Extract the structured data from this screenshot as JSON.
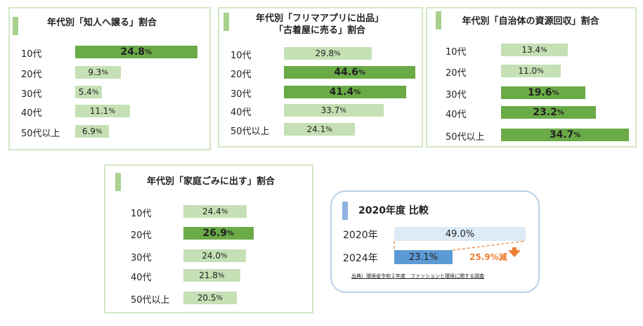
{
  "chart_data": [
    {
      "type": "bar",
      "title": "年代別「知人へ譲る」割合",
      "categories": [
        "10代",
        "20代",
        "30代",
        "40代",
        "50代以上"
      ],
      "values": [
        24.8,
        9.3,
        5.4,
        11.1,
        6.9
      ],
      "unit": "%",
      "highlight": 0
    },
    {
      "type": "bar",
      "title": "年代別「フリマアプリに出品」「古着屋に売る」割合",
      "title_lines": [
        "年代別「フリマアプリに出品」",
        "「古着屋に売る」割合"
      ],
      "categories": [
        "10代",
        "20代",
        "30代",
        "40代",
        "50代以上"
      ],
      "values": [
        29.8,
        44.6,
        41.4,
        33.7,
        24.1
      ],
      "unit": "%",
      "highlight": [
        1,
        2
      ]
    },
    {
      "type": "bar",
      "title": "年代別「自治体の資源回収」割合",
      "categories": [
        "10代",
        "20代",
        "30代",
        "40代",
        "50代以上"
      ],
      "values": [
        13.4,
        11.0,
        19.6,
        23.2,
        34.7
      ],
      "unit": "%",
      "highlight": [
        2,
        3,
        4
      ]
    },
    {
      "type": "bar",
      "title": "年代別「家庭ごみに出す」割合",
      "categories": [
        "10代",
        "20代",
        "30代",
        "40代",
        "50代以上"
      ],
      "values": [
        24.4,
        26.9,
        24.0,
        21.8,
        20.5
      ],
      "unit": "%",
      "highlight": [
        1
      ]
    },
    {
      "type": "bar",
      "title": "2020年度 比較",
      "categories": [
        "2020年",
        "2024年"
      ],
      "values": [
        49.0,
        23.1
      ],
      "unit": "%",
      "annotation": "25.9%減",
      "source": "出典）環境省令和２年度　ファッションと環境に関する調査"
    }
  ],
  "colors": {
    "dark": "#6aab47",
    "light": "#c5e0b4",
    "blue": "#5b9bd5",
    "lightblue": "#ddebf7",
    "orange": "#ed7d31"
  }
}
